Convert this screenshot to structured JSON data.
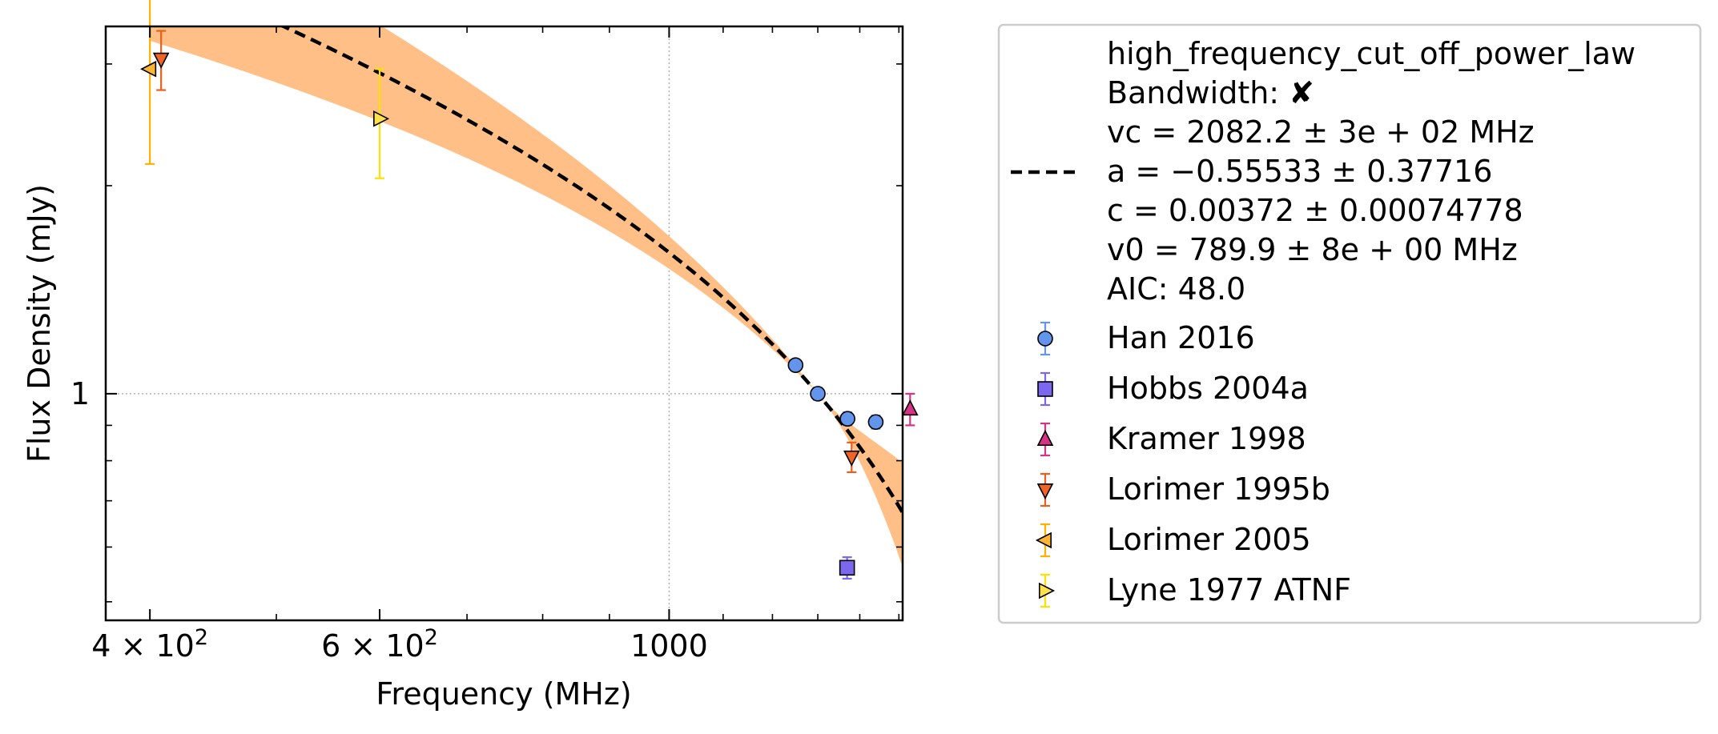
{
  "chart_data": {
    "type": "scatter",
    "xlabel": "Frequency (MHz)",
    "ylabel": "Flux Density (mJy)",
    "xscale": "log",
    "yscale": "log",
    "xlim": [
      370,
      1510
    ],
    "ylim": [
      0.47,
      3.4
    ],
    "x_ticks": [
      {
        "value": 400,
        "label_base": "4 × 10",
        "label_exp": "2"
      },
      {
        "value": 600,
        "label_base": "6 × 10",
        "label_exp": "2"
      },
      {
        "value": 1000,
        "label_base": "1000",
        "label_exp": ""
      }
    ],
    "y_ticks": [
      {
        "value": 1,
        "label": "1"
      }
    ],
    "grid": true,
    "legend_position": "right",
    "model": {
      "name": "high_frequency_cut_off_power_law",
      "lines": [
        "high_frequency_cut_off_power_law",
        "Bandwidth: ✘",
        "vc = 2082.2 ± 3e + 02 MHz",
        "a = −0.55533 ± 0.37716",
        "c = 0.00372 ± 0.00074778",
        "v0 = 789.9 ± 8e + 00 MHz",
        "AIC: 48.0"
      ],
      "params": {
        "vc": 2082.2,
        "a": -0.55533,
        "c": 0.00372,
        "v0": 789.9
      },
      "band_color": "#ffbf86",
      "line_color": "#000000"
    },
    "series": [
      {
        "name": "Han 2016",
        "marker": "circle",
        "color": "#6495ed",
        "err_color": "#6495ed",
        "points": [
          {
            "x": 1250,
            "y": 1.1,
            "yerr": 0.02
          },
          {
            "x": 1300,
            "y": 1.0,
            "yerr": 0.02
          },
          {
            "x": 1370,
            "y": 0.92,
            "yerr": 0.02
          },
          {
            "x": 1440,
            "y": 0.91,
            "yerr": 0.02
          }
        ]
      },
      {
        "name": "Hobbs 2004a",
        "marker": "square",
        "color": "#7b68ee",
        "err_color": "#7b68ee",
        "points": [
          {
            "x": 1369,
            "y": 0.56,
            "yerr": 0.02
          }
        ]
      },
      {
        "name": "Kramer 1998",
        "marker": "triangle-up",
        "color": "#d63384",
        "err_color": "#d63384",
        "points": [
          {
            "x": 1530,
            "y": 0.95,
            "yerr": 0.05
          }
        ]
      },
      {
        "name": "Lorimer 1995b",
        "marker": "triangle-down",
        "color": "#f0642a",
        "err_color": "#e8601c",
        "points": [
          {
            "x": 408,
            "y": 3.05,
            "yerr": 0.3
          },
          {
            "x": 1380,
            "y": 0.81,
            "yerr": 0.04
          }
        ]
      },
      {
        "name": "Lorimer 2005",
        "marker": "triangle-left",
        "color": "#ffb534",
        "err_color": "#ffb000",
        "points": [
          {
            "x": 400,
            "y": 2.95,
            "yerr": 0.8
          }
        ]
      },
      {
        "name": "Lyne 1977 ATNF",
        "marker": "triangle-right",
        "color": "#ffe14a",
        "err_color": "#ffe000",
        "points": [
          {
            "x": 600,
            "y": 2.5,
            "yerr": 0.45
          }
        ]
      }
    ]
  }
}
